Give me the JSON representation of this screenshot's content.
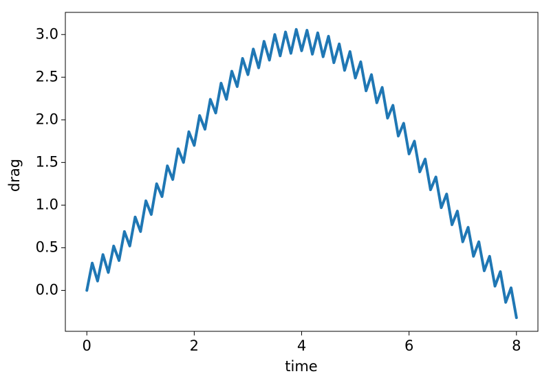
{
  "chart_data": {
    "type": "line",
    "x_label": "time",
    "y_label": "drag",
    "x": [
      0,
      0.1,
      0.2,
      0.3,
      0.4,
      0.5,
      0.6,
      0.7,
      0.8,
      0.9,
      1,
      1.1,
      1.2,
      1.3,
      1.4,
      1.5,
      1.6,
      1.7,
      1.8,
      1.9,
      2,
      2.1,
      2.2,
      2.3,
      2.4,
      2.5,
      2.6,
      2.7,
      2.8,
      2.9,
      3,
      3.1,
      3.2,
      3.3,
      3.4,
      3.5,
      3.6,
      3.7,
      3.8,
      3.9,
      4,
      4.1,
      4.2,
      4.3,
      4.4,
      4.5,
      4.6,
      4.7,
      4.8,
      4.9,
      5,
      5.1,
      5.2,
      5.3,
      5.4,
      5.5,
      5.6,
      5.7,
      5.8,
      5.9,
      6,
      6.1,
      6.2,
      6.3,
      6.4,
      6.5,
      6.6,
      6.7,
      6.8,
      6.9,
      7,
      7.1,
      7.2,
      7.3,
      7.4,
      7.5,
      7.6,
      7.7,
      7.8,
      7.9,
      8
    ],
    "series": [
      {
        "color": "#1f77b4",
        "values": [
          0.0,
          0.32,
          0.11,
          0.42,
          0.21,
          0.52,
          0.35,
          0.69,
          0.52,
          0.86,
          0.69,
          1.05,
          0.89,
          1.25,
          1.1,
          1.46,
          1.3,
          1.66,
          1.5,
          1.86,
          1.7,
          2.05,
          1.89,
          2.24,
          2.08,
          2.43,
          2.24,
          2.57,
          2.39,
          2.72,
          2.53,
          2.83,
          2.61,
          2.92,
          2.7,
          3.0,
          2.75,
          3.03,
          2.78,
          3.06,
          2.81,
          3.05,
          2.77,
          3.02,
          2.74,
          2.98,
          2.67,
          2.89,
          2.58,
          2.8,
          2.49,
          2.68,
          2.34,
          2.53,
          2.2,
          2.38,
          2.02,
          2.17,
          1.81,
          1.96,
          1.6,
          1.75,
          1.39,
          1.54,
          1.18,
          1.33,
          0.97,
          1.13,
          0.77,
          0.93,
          0.57,
          0.74,
          0.4,
          0.57,
          0.23,
          0.4,
          0.05,
          0.22,
          -0.14,
          0.03,
          -0.32
        ]
      }
    ],
    "xlim": [
      -0.4,
      8.4
    ],
    "ylim": [
      -0.48,
      3.26
    ],
    "xticks": [
      0,
      2,
      4,
      6,
      8
    ],
    "yticks": [
      {
        "value": 0,
        "label": "0.0"
      },
      0.5,
      {
        "value": 1,
        "label": "1.0"
      },
      1.5,
      {
        "value": 2,
        "label": "2.0"
      },
      2.5,
      {
        "value": 3,
        "label": "3.0"
      }
    ]
  }
}
